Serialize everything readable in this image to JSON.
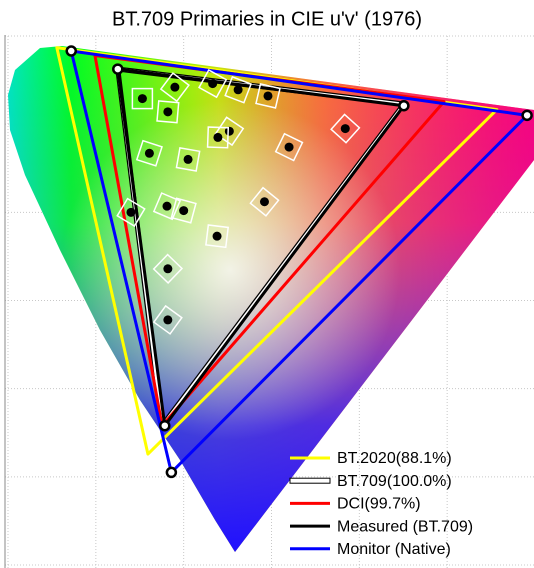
{
  "chart_data": {
    "type": "gamut",
    "title": "BT.709 Primaries in CIE u'v' (1976)",
    "xlim": [
      0,
      0.6
    ],
    "ylim": [
      0,
      0.6
    ],
    "xticks": [
      0,
      0.1,
      0.2,
      0.3,
      0.4,
      0.5,
      0.6
    ],
    "yticks": [
      0,
      0.1,
      0.2,
      0.3,
      0.4,
      0.5,
      0.6
    ],
    "grid": true,
    "legend": "lower right",
    "series": [
      {
        "name": "BT.2020(88.1%)",
        "color": "#ffff00",
        "x": [
          0.0556,
          0.5566,
          0.1593
        ],
        "values": [
          0.5868,
          0.5165,
          0.1258
        ]
      },
      {
        "name": "BT.709(100.0%)",
        "color": "#ffffff",
        "x": [
          0.125,
          0.4507,
          0.1754
        ],
        "values": [
          0.5625,
          0.5229,
          0.1579
        ]
      },
      {
        "name": "DCI(99.7%)",
        "color": "#ff0000",
        "x": [
          0.099,
          0.4964,
          0.1754
        ],
        "values": [
          0.5779,
          0.5256,
          0.1579
        ]
      },
      {
        "name": "Measured (BT.709)",
        "color": "#000000",
        "x": [
          0.125,
          0.4507,
          0.1785
        ],
        "values": [
          0.5625,
          0.5209,
          0.158
        ],
        "markers": true
      },
      {
        "name": "Monitor (Native)",
        "color": "#0000ff",
        "x": [
          0.072,
          0.591,
          0.186
        ],
        "values": [
          0.583,
          0.51,
          0.105
        ],
        "markers": true
      }
    ],
    "points": {
      "x": [
        0.153,
        0.19,
        0.233,
        0.262,
        0.296,
        0.182,
        0.384,
        0.252,
        0.32,
        0.161,
        0.205,
        0.239,
        0.292,
        0.14,
        0.181,
        0.2,
        0.238,
        0.182,
        0.182
      ],
      "values": [
        0.529,
        0.542,
        0.546,
        0.539,
        0.532,
        0.514,
        0.495,
        0.492,
        0.474,
        0.467,
        0.46,
        0.485,
        0.412,
        0.4,
        0.407,
        0.402,
        0.373,
        0.336,
        0.278
      ]
    }
  }
}
